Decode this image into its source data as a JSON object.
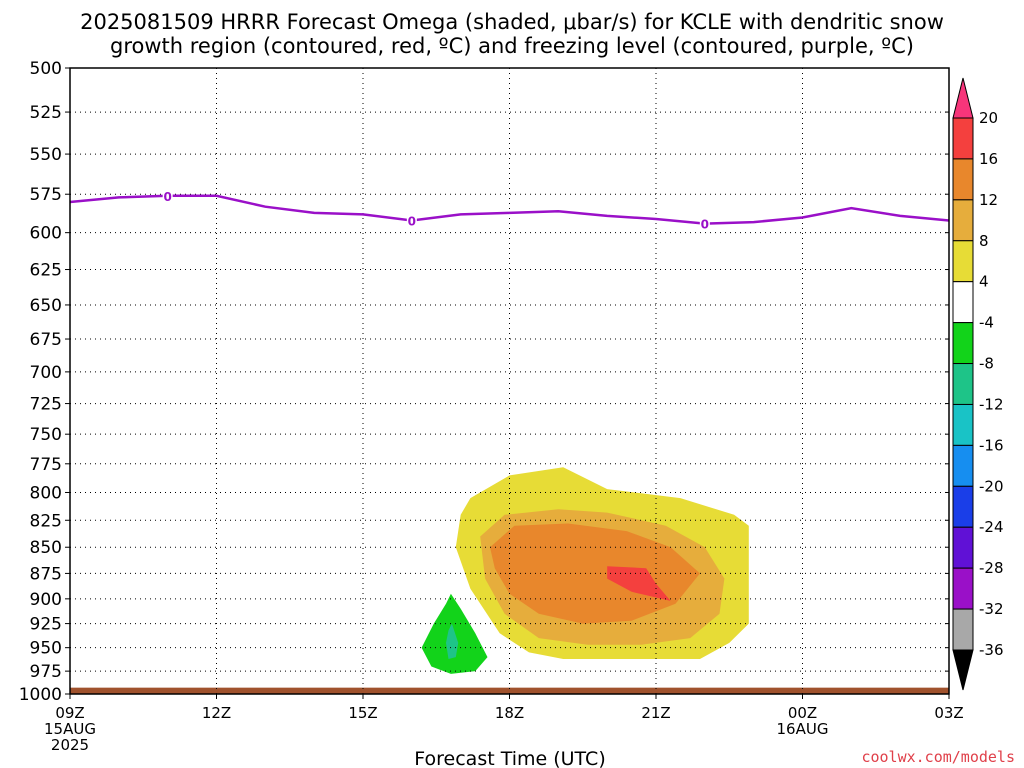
{
  "title": {
    "line1": "2025081509 HRRR Forecast Omega (shaded, μbar/s) for KCLE with dendritic snow",
    "line2": "growth region (contoured, red, ºC) and freezing level (contoured, purple, ºC)"
  },
  "credit": "coolwx.com/models",
  "colors": {
    "freezing_level": "#9a10c8",
    "ground": "#a0522d",
    "grid": "#000000"
  },
  "chart_data": {
    "type": "time-height",
    "xlabel": "Forecast Time (UTC)",
    "xlim_hours": [
      0,
      18
    ],
    "ylim_hpa": [
      1000,
      500
    ],
    "y_scale": "log-pressure",
    "x_ticks": [
      {
        "hour": 0,
        "label": "09Z",
        "sub": [
          "15AUG",
          "2025"
        ]
      },
      {
        "hour": 3,
        "label": "12Z",
        "sub": []
      },
      {
        "hour": 6,
        "label": "15Z",
        "sub": []
      },
      {
        "hour": 9,
        "label": "18Z",
        "sub": []
      },
      {
        "hour": 12,
        "label": "21Z",
        "sub": []
      },
      {
        "hour": 15,
        "label": "00Z",
        "sub": [
          "16AUG"
        ]
      },
      {
        "hour": 18,
        "label": "03Z",
        "sub": []
      }
    ],
    "y_ticks": [
      500,
      525,
      550,
      575,
      600,
      625,
      650,
      675,
      700,
      725,
      750,
      775,
      800,
      825,
      850,
      875,
      900,
      925,
      950,
      975,
      1000
    ],
    "grid": true,
    "freezing_level": {
      "value_label": "0",
      "label_hours": [
        2,
        7,
        13
      ],
      "points": [
        [
          0,
          580
        ],
        [
          1,
          577
        ],
        [
          2,
          576
        ],
        [
          3,
          576
        ],
        [
          4,
          583
        ],
        [
          5,
          587
        ],
        [
          6,
          588
        ],
        [
          7,
          592
        ],
        [
          8,
          588
        ],
        [
          9,
          587
        ],
        [
          10,
          586
        ],
        [
          11,
          589
        ],
        [
          12,
          591
        ],
        [
          13,
          594
        ],
        [
          14,
          593
        ],
        [
          15,
          590
        ],
        [
          16,
          584
        ],
        [
          17,
          589
        ],
        [
          18,
          592
        ]
      ]
    },
    "omega_regions": [
      {
        "value": "4 to 8",
        "color": "#e7dc36",
        "polygon": [
          [
            8.2,
            805
          ],
          [
            9.0,
            785
          ],
          [
            10.1,
            778
          ],
          [
            11.0,
            797
          ],
          [
            12.5,
            805
          ],
          [
            13.6,
            820
          ],
          [
            13.9,
            830
          ],
          [
            13.9,
            925
          ],
          [
            13.5,
            945
          ],
          [
            12.9,
            962
          ],
          [
            12.0,
            962
          ],
          [
            11.0,
            962
          ],
          [
            10.1,
            962
          ],
          [
            9.4,
            955
          ],
          [
            8.8,
            935
          ],
          [
            8.2,
            890
          ],
          [
            7.9,
            850
          ],
          [
            8.0,
            820
          ]
        ]
      },
      {
        "value": "8 to 12",
        "color": "#e6ad3c",
        "polygon": [
          [
            8.4,
            840
          ],
          [
            8.9,
            820
          ],
          [
            10.0,
            815
          ],
          [
            11.0,
            818
          ],
          [
            12.2,
            830
          ],
          [
            13.0,
            850
          ],
          [
            13.4,
            880
          ],
          [
            13.3,
            915
          ],
          [
            12.7,
            940
          ],
          [
            11.7,
            947
          ],
          [
            10.6,
            947
          ],
          [
            9.6,
            940
          ],
          [
            8.9,
            915
          ],
          [
            8.5,
            880
          ]
        ]
      },
      {
        "value": "12 to 16",
        "color": "#e8872c",
        "polygon": [
          [
            8.6,
            850
          ],
          [
            9.1,
            830
          ],
          [
            10.2,
            828
          ],
          [
            11.4,
            835
          ],
          [
            12.3,
            850
          ],
          [
            12.9,
            875
          ],
          [
            12.4,
            905
          ],
          [
            11.5,
            922
          ],
          [
            10.5,
            925
          ],
          [
            9.6,
            915
          ],
          [
            9.0,
            895
          ],
          [
            8.7,
            870
          ]
        ]
      },
      {
        "value": "16 to 20",
        "color": "#f4403e",
        "polygon": [
          [
            11.0,
            868
          ],
          [
            11.8,
            870
          ],
          [
            12.0,
            885
          ],
          [
            12.3,
            902
          ],
          [
            11.5,
            893
          ],
          [
            11.0,
            880
          ]
        ]
      },
      {
        "value": "-8 to -4",
        "color": "#12d31a",
        "polygon": [
          [
            7.8,
            895
          ],
          [
            8.0,
            910
          ],
          [
            8.3,
            935
          ],
          [
            8.55,
            960
          ],
          [
            8.3,
            975
          ],
          [
            7.8,
            978
          ],
          [
            7.4,
            970
          ],
          [
            7.2,
            950
          ],
          [
            7.45,
            925
          ],
          [
            7.7,
            905
          ]
        ]
      },
      {
        "value": "-12 to -8",
        "color": "#1ec488",
        "polygon": [
          [
            7.82,
            925
          ],
          [
            7.95,
            945
          ],
          [
            7.9,
            960
          ],
          [
            7.75,
            962
          ],
          [
            7.7,
            945
          ],
          [
            7.75,
            932
          ]
        ]
      }
    ],
    "surface_layer": {
      "color": "#a0522d",
      "top_hpa": 993,
      "label": ""
    },
    "colorbar": {
      "labels": [
        "20",
        "16",
        "12",
        "8",
        "4",
        "-4",
        "-8",
        "-12",
        "-16",
        "-20",
        "-24",
        "-28",
        "-32",
        "-36"
      ],
      "segments": [
        {
          "color": "#f7357a"
        },
        {
          "color": "#f4403e"
        },
        {
          "color": "#e8872c"
        },
        {
          "color": "#e6ad3c"
        },
        {
          "color": "#e7dc36"
        },
        {
          "color": "#ffffff"
        },
        {
          "color": "#12d31a"
        },
        {
          "color": "#1ec488"
        },
        {
          "color": "#19c3c6"
        },
        {
          "color": "#168ef0"
        },
        {
          "color": "#1a3ee8"
        },
        {
          "color": "#6011d6"
        },
        {
          "color": "#9a10c8"
        },
        {
          "color": "#a8a8a8"
        },
        {
          "color": "#000000"
        }
      ]
    }
  }
}
